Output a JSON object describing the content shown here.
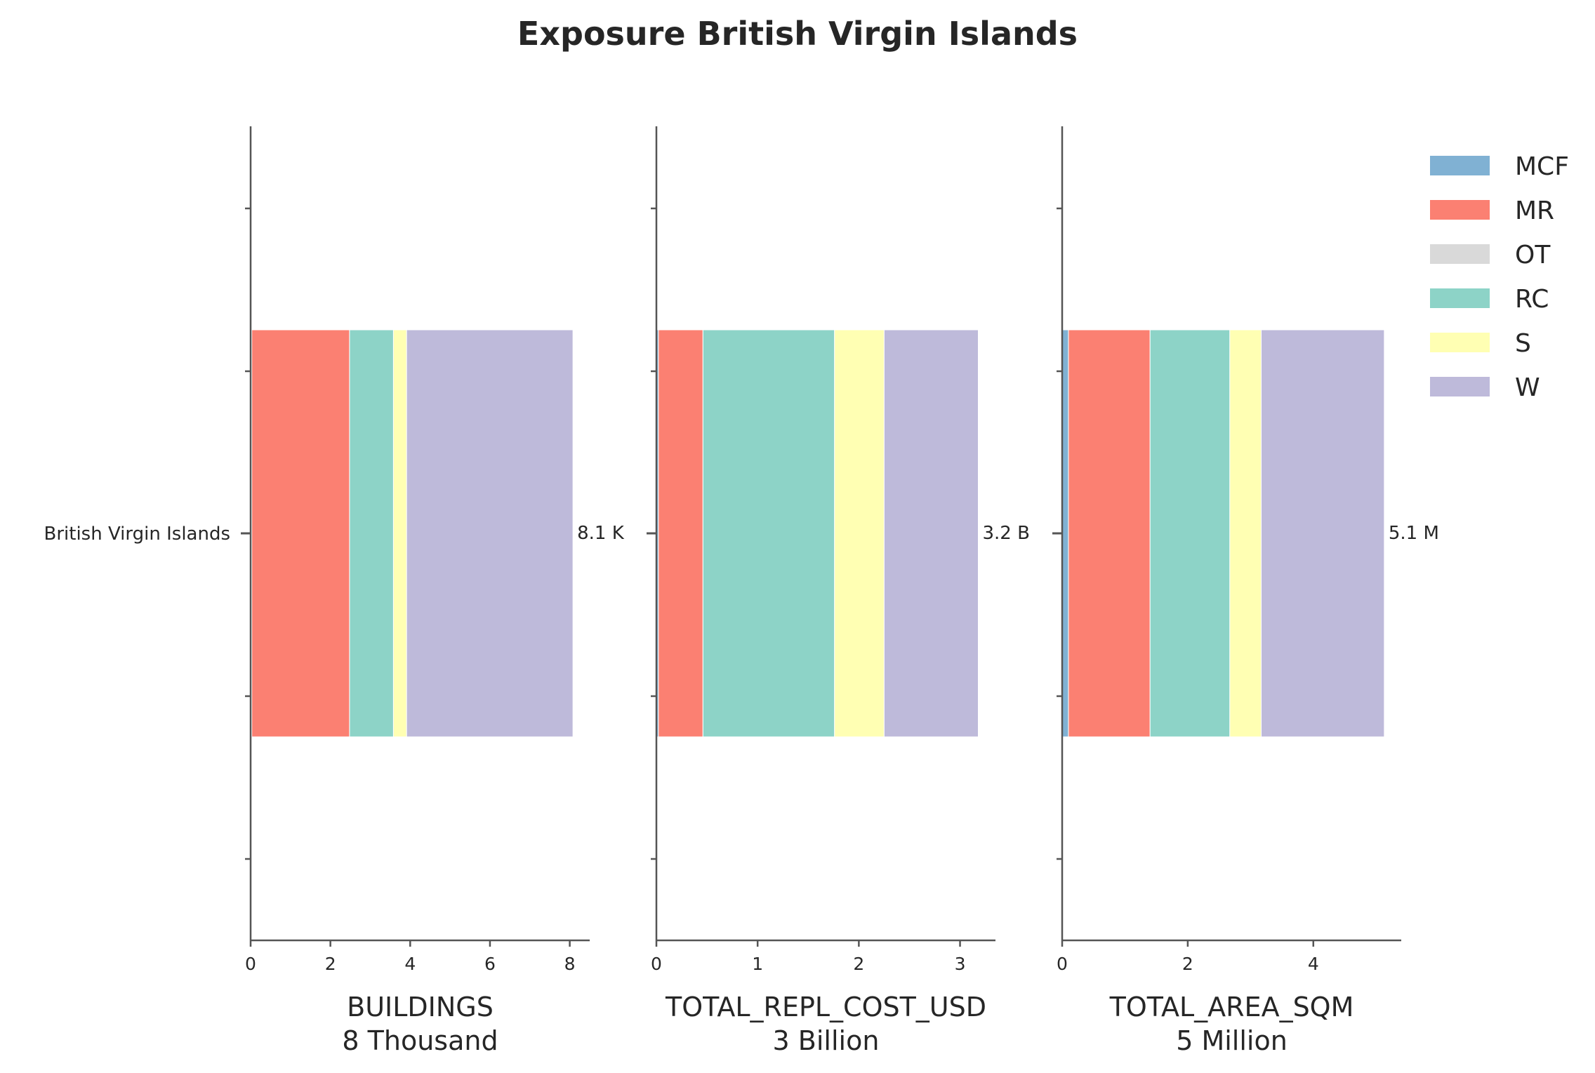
{
  "chart_data": {
    "type": "bar",
    "orientation": "horizontal",
    "stacked": true,
    "title": "Exposure British Virgin Islands",
    "category": "British Virgin Islands",
    "legend": {
      "placement": "right",
      "entries": [
        {
          "name": "MCF",
          "color": "#80b1d3"
        },
        {
          "name": "MR",
          "color": "#fb8072"
        },
        {
          "name": "OT",
          "color": "#d9d9d9"
        },
        {
          "name": "RC",
          "color": "#8dd3c7"
        },
        {
          "name": "S",
          "color": "#ffffb3"
        },
        {
          "name": "W",
          "color": "#bebada"
        }
      ]
    },
    "panels": [
      {
        "xlabel": "BUILDINGS",
        "xlabel_unit": "8 Thousand",
        "xlim": [
          0,
          8.5
        ],
        "ticks": [
          0,
          2,
          4,
          6,
          8
        ],
        "segments": {
          "MCF": 0.03,
          "MR": 2.45,
          "OT": 0.0,
          "RC": 1.1,
          "S": 0.33,
          "W": 4.17
        },
        "total_label": "8.1 K"
      },
      {
        "xlabel": "TOTAL_REPL_COST_USD",
        "xlabel_unit": "3 Billion",
        "xlim": [
          0,
          3.35
        ],
        "ticks": [
          0,
          1,
          2,
          3
        ],
        "segments": {
          "MCF": 0.02,
          "MR": 0.44,
          "OT": 0.0,
          "RC": 1.3,
          "S": 0.49,
          "W": 0.93
        },
        "total_label": "3.2 B"
      },
      {
        "xlabel": "TOTAL_AREA_SQM",
        "xlabel_unit": "5 Million",
        "xlim": [
          0,
          5.4
        ],
        "ticks": [
          0,
          2,
          4
        ],
        "segments": {
          "MCF": 0.1,
          "MR": 1.3,
          "OT": 0.0,
          "RC": 1.27,
          "S": 0.5,
          "W": 1.96
        },
        "total_label": "5.1 M"
      }
    ]
  }
}
